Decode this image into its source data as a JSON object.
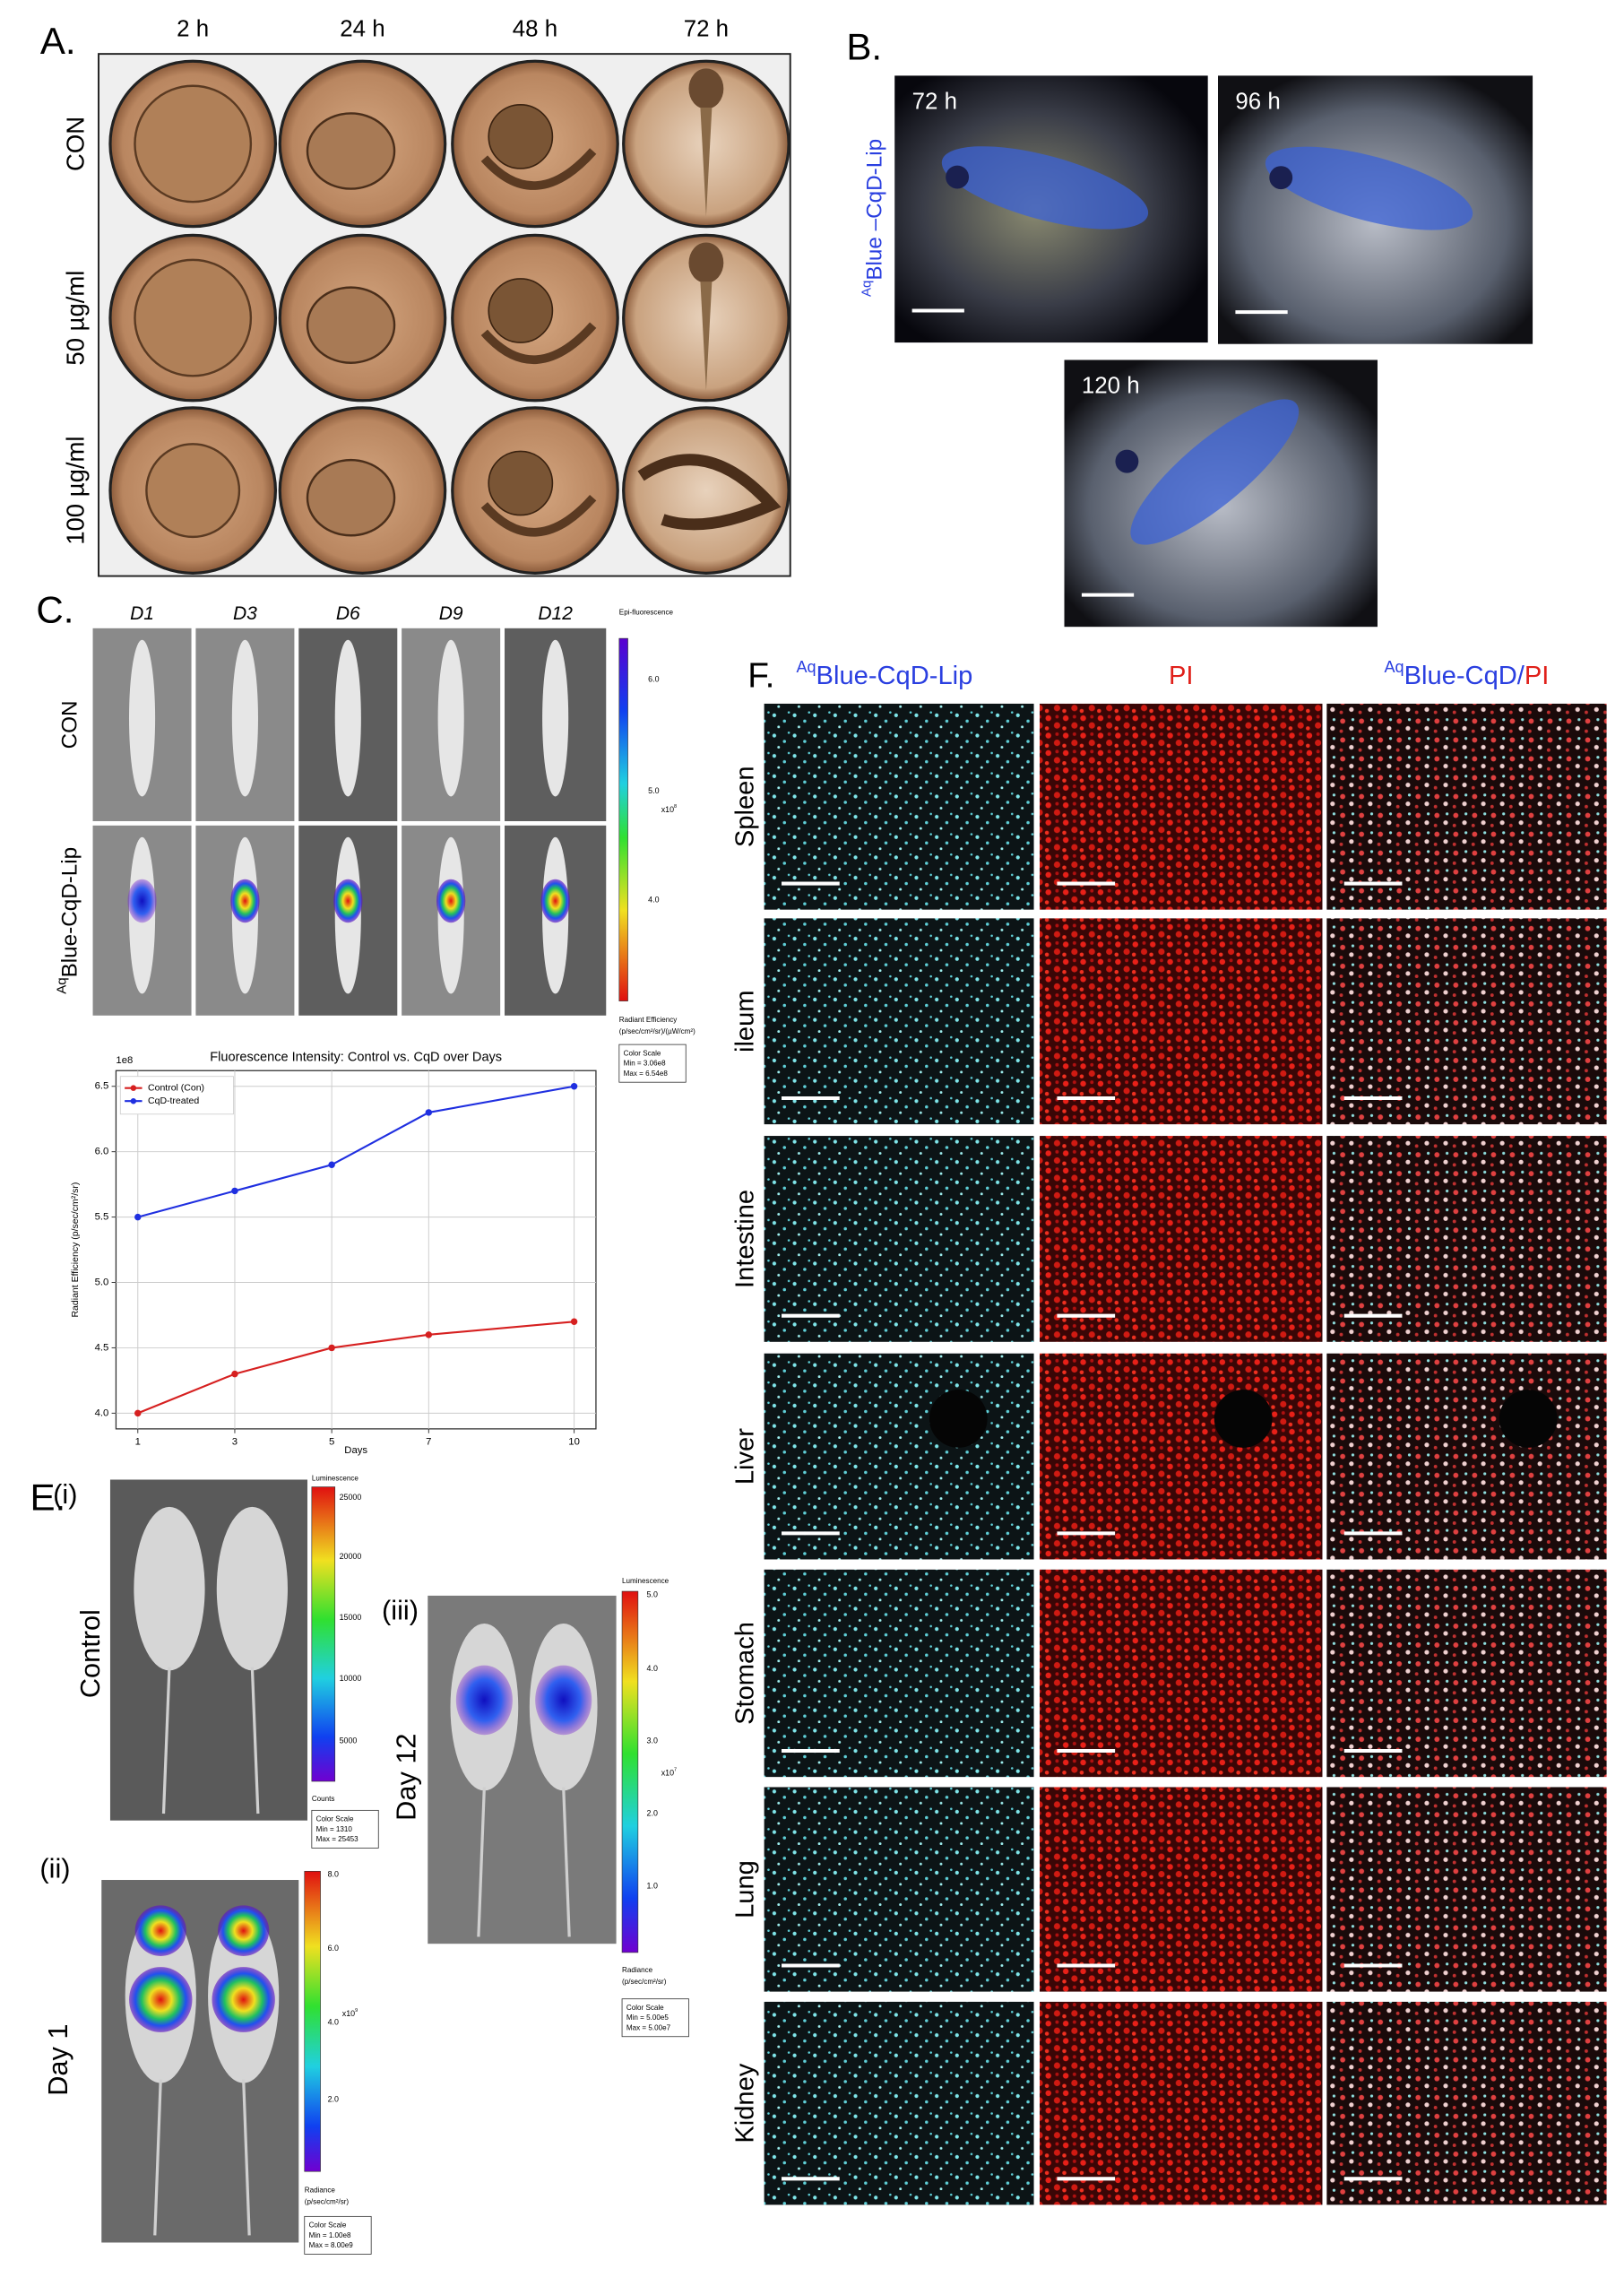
{
  "panel_a": {
    "label": "A.",
    "columns": [
      "2 h",
      "24 h",
      "48 h",
      "72 h"
    ],
    "rows": [
      "CON",
      "50 µg/ml",
      "100 µg/ml"
    ]
  },
  "panel_b": {
    "label": "B.",
    "images": [
      "72 h",
      "96 h",
      "120 h"
    ],
    "side_label": [
      {
        "text": "Aq",
        "sup": true,
        "color": "#2a3fe0"
      },
      {
        "text": "Blue –CqD-Lip",
        "color": "#2a3fe0"
      }
    ]
  },
  "panel_c": {
    "label": "C.",
    "columns": [
      "D1",
      "D3",
      "D6",
      "D9",
      "D12"
    ],
    "rows": [
      [
        {
          "text": "CON"
        }
      ],
      [
        {
          "text": "Aq",
          "sup": true
        },
        {
          "text": "Blue-CqD-Lip"
        }
      ]
    ],
    "colorbar": {
      "title": "Epi-fluorescence",
      "ticks": [
        "6.0",
        "5.0",
        "4.0"
      ],
      "exponent": [
        {
          "text": "x10"
        },
        {
          "text": "8",
          "sup": true
        }
      ],
      "units": [
        "Radiant Efficiency",
        "(p/sec/cm²/sr)/(µW/cm²)"
      ],
      "scale": [
        "Color Scale",
        "Min = 3.06e8",
        "Max = 6.54e8"
      ]
    }
  },
  "chart_data": {
    "type": "line",
    "title": "Fluorescence Intensity: Control vs. CqD over Days",
    "xlabel": "Days",
    "ylabel": "Radiant Efficiency (p/sec/cm²/sr)",
    "y_multiplier": "1e8",
    "x": [
      1,
      3,
      5,
      7,
      10
    ],
    "xlim": [
      0.55,
      10.45
    ],
    "xticks": [
      1,
      3,
      5,
      7,
      10
    ],
    "ylim": [
      3.88,
      6.62
    ],
    "yticks": [
      {
        "value": 4,
        "label": "4.0"
      },
      4.5,
      {
        "value": 5,
        "label": "5.0"
      },
      5.5,
      {
        "value": 6,
        "label": "6.0"
      },
      6.5
    ],
    "grid": true,
    "legend": "upper left",
    "series": [
      {
        "name": "Control (Con)",
        "color": "#d62020",
        "values": [
          4.0,
          4.3,
          4.5,
          4.6,
          4.7
        ]
      },
      {
        "name": "CqD-treated",
        "color": "#1f2fe0",
        "values": [
          5.5,
          5.7,
          5.9,
          6.3,
          6.5
        ]
      }
    ]
  },
  "panel_e": {
    "label": "E.",
    "subpanels": [
      {
        "label": "(i)",
        "row_label": "Control",
        "colorbar": {
          "title": "Luminescence",
          "ticks": [
            "25000",
            "20000",
            "15000",
            "10000",
            "5000"
          ],
          "units": [
            "Counts"
          ],
          "scale": [
            "Color Scale",
            "Min = 1310",
            "Max = 25453"
          ]
        }
      },
      {
        "label": "(ii)",
        "row_label": "Day 1",
        "colorbar": {
          "ticks": [
            "8.0",
            "6.0",
            "4.0",
            "2.0"
          ],
          "exponent": [
            {
              "text": "x10"
            },
            {
              "text": "9",
              "sup": true
            }
          ],
          "units": [
            "Radiance",
            "(p/sec/cm²/sr)"
          ],
          "scale": [
            "Color Scale",
            "Min = 1.00e8",
            "Max = 8.00e9"
          ]
        }
      },
      {
        "label": "(iii)",
        "row_label": "Day 12",
        "colorbar": {
          "title": "Luminescence",
          "ticks": [
            "5.0",
            "4.0",
            "3.0",
            "2.0",
            "1.0"
          ],
          "exponent": [
            {
              "text": "x10"
            },
            {
              "text": "7",
              "sup": true
            }
          ],
          "units": [
            "Radiance",
            "(p/sec/cm²/sr)"
          ],
          "scale": [
            "Color Scale",
            "Min = 5.00e5",
            "Max = 5.00e7"
          ]
        }
      }
    ]
  },
  "panel_f": {
    "label": "F.",
    "columns": [
      [
        {
          "text": "Aq",
          "sup": true,
          "color": "#2a3fe0"
        },
        {
          "text": "Blue-CqD-Lip",
          "color": "#2a3fe0"
        }
      ],
      [
        {
          "text": "PI",
          "color": "#e0201a"
        }
      ],
      [
        {
          "text": "Aq",
          "sup": true,
          "color": "#2a3fe0"
        },
        {
          "text": "Blue-CqD/",
          "color": "#2a3fe0"
        },
        {
          "text": "PI",
          "color": "#e0201a"
        }
      ]
    ],
    "rows": [
      "Spleen",
      "ileum",
      "Intestine",
      "Liver",
      "Stomach",
      "Lung",
      "Kidney"
    ]
  }
}
